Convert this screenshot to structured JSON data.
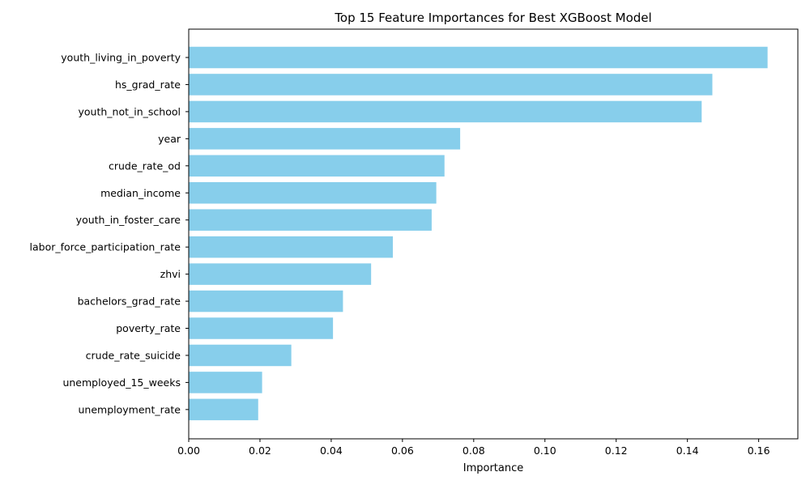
{
  "chart_data": {
    "type": "bar",
    "orientation": "horizontal",
    "title": "Top 15 Feature Importances for Best XGBoost Model",
    "xlabel": "Importance",
    "ylabel": "",
    "categories": [
      "youth_living_in_poverty",
      "hs_grad_rate",
      "youth_not_in_school",
      "year",
      "crude_rate_od",
      "median_income",
      "youth_in_foster_care",
      "labor_force_participation_rate",
      "zhvi",
      "bachelors_grad_rate",
      "poverty_rate",
      "crude_rate_suicide",
      "unemployed_15_weeks",
      "unemployment_rate"
    ],
    "values": [
      0.1625,
      0.147,
      0.144,
      0.0762,
      0.0718,
      0.0695,
      0.0682,
      0.0573,
      0.0512,
      0.0433,
      0.0405,
      0.0288,
      0.0206,
      0.0195
    ],
    "xlim": [
      0,
      0.171
    ],
    "xticks": [
      0.0,
      0.02,
      0.04,
      0.06,
      0.08,
      0.1,
      0.12,
      0.14,
      0.16
    ],
    "xtick_labels": [
      "0.00",
      "0.02",
      "0.04",
      "0.06",
      "0.08",
      "0.10",
      "0.12",
      "0.14",
      "0.16"
    ],
    "bar_color": "#87CEEB",
    "grid": false,
    "legend": "none"
  }
}
